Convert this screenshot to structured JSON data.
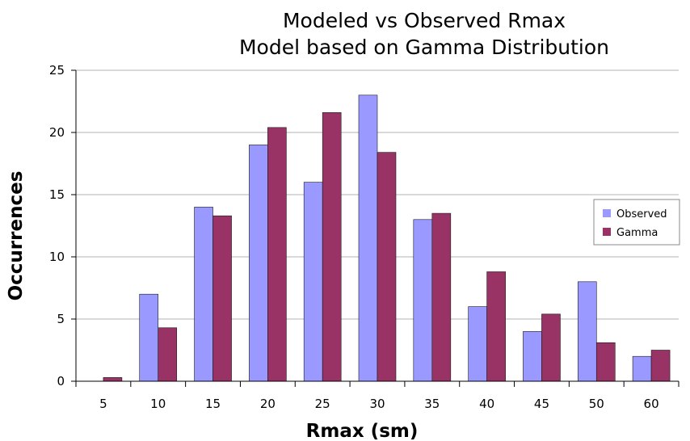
{
  "chart_data": {
    "type": "bar",
    "title": "Modeled vs Observed Rmax",
    "subtitle": "Model based on Gamma Distribution",
    "xlabel": "Rmax (sm)",
    "ylabel": "Occurrences",
    "categories": [
      "5",
      "10",
      "15",
      "20",
      "25",
      "30",
      "35",
      "40",
      "45",
      "50",
      "60"
    ],
    "series": [
      {
        "name": "Observed",
        "color": "#9999ff",
        "values": [
          0,
          7,
          14,
          19,
          16,
          23,
          13,
          6,
          4,
          8,
          2
        ]
      },
      {
        "name": "Gamma",
        "color": "#993366",
        "values": [
          0.3,
          4.3,
          13.3,
          20.4,
          21.6,
          18.4,
          13.5,
          8.8,
          5.4,
          3.1,
          2.5
        ]
      }
    ],
    "ylim": [
      0,
      25
    ],
    "yticks": [
      "0",
      "5",
      "10",
      "15",
      "20",
      "25"
    ],
    "grid": true,
    "legend_position": "right"
  }
}
